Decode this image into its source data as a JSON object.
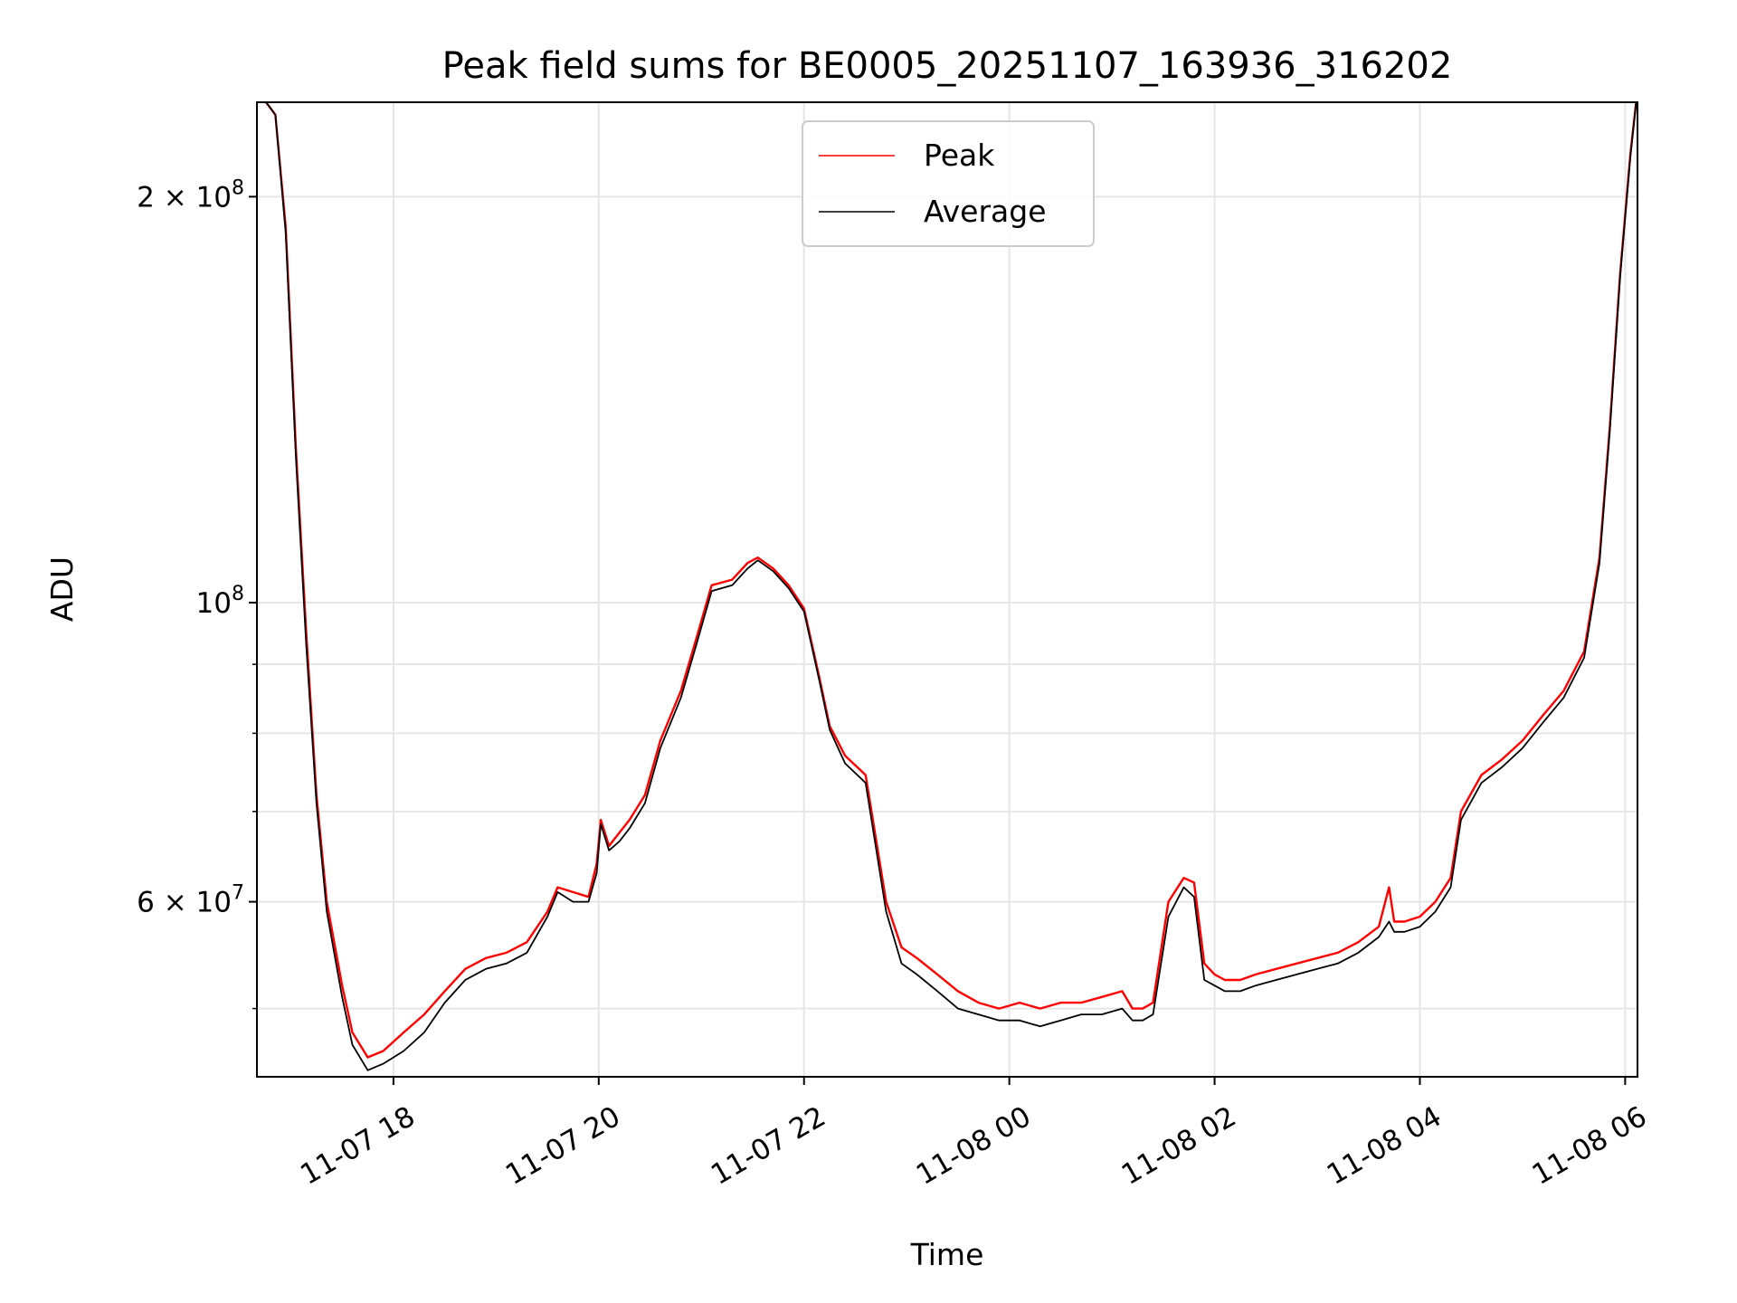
{
  "chart_data": {
    "type": "line",
    "title": "Peak field sums for BE0005_20251107_163936_316202",
    "xlabel": "Time",
    "ylabel": "ADU",
    "yscale": "log",
    "ylim": [
      44500000,
      235000000
    ],
    "xlim_hours": [
      16.67,
      30.12
    ],
    "x_unit": "hours since 2025-11-07 00:00",
    "grid": true,
    "legend_position": "upper-center",
    "x_ticks": [
      {
        "value": 18,
        "label": "11-07 18"
      },
      {
        "value": 20,
        "label": "11-07 20"
      },
      {
        "value": 22,
        "label": "11-07 22"
      },
      {
        "value": 24,
        "label": "11-08 00"
      },
      {
        "value": 26,
        "label": "11-08 02"
      },
      {
        "value": 28,
        "label": "11-08 04"
      },
      {
        "value": 30,
        "label": "11-08 06"
      }
    ],
    "y_ticks": [
      {
        "value": 60000000,
        "label": "6 × 10",
        "exp": "7"
      },
      {
        "value": 100000000,
        "label": "10",
        "exp": "8"
      },
      {
        "value": 200000000,
        "label": "2 × 10",
        "exp": "8"
      }
    ],
    "y_minor_ticks": [
      50000000,
      70000000,
      80000000,
      90000000
    ],
    "series": [
      {
        "name": "Peak",
        "color": "#ff0000",
        "x": [
          16.67,
          16.85,
          16.95,
          17.05,
          17.15,
          17.25,
          17.35,
          17.5,
          17.6,
          17.75,
          17.9,
          18.1,
          18.3,
          18.5,
          18.7,
          18.9,
          19.1,
          19.3,
          19.5,
          19.6,
          19.75,
          19.9,
          19.98,
          20.02,
          20.1,
          20.2,
          20.3,
          20.45,
          20.6,
          20.8,
          20.95,
          21.1,
          21.3,
          21.45,
          21.55,
          21.7,
          21.85,
          22.0,
          22.15,
          22.25,
          22.4,
          22.6,
          22.8,
          22.95,
          23.1,
          23.3,
          23.5,
          23.7,
          23.9,
          24.1,
          24.3,
          24.5,
          24.7,
          24.9,
          25.1,
          25.2,
          25.3,
          25.4,
          25.55,
          25.7,
          25.8,
          25.9,
          26.0,
          26.1,
          26.15,
          26.25,
          26.4,
          26.6,
          26.8,
          27.0,
          27.2,
          27.4,
          27.6,
          27.7,
          27.75,
          27.85,
          28.0,
          28.15,
          28.3,
          28.4,
          28.6,
          28.8,
          29.0,
          29.2,
          29.4,
          29.6,
          29.75,
          29.85,
          29.95,
          30.05,
          30.12
        ],
        "values": [
          240000000,
          230000000,
          190000000,
          130000000,
          95000000,
          72000000,
          60000000,
          52000000,
          48000000,
          46000000,
          46500000,
          48000000,
          49500000,
          51500000,
          53500000,
          54500000,
          55000000,
          56000000,
          59000000,
          61500000,
          61000000,
          60500000,
          64000000,
          69000000,
          66000000,
          67500000,
          69000000,
          72000000,
          79000000,
          86000000,
          94000000,
          103000000,
          104000000,
          107000000,
          108000000,
          106000000,
          103000000,
          99000000,
          88000000,
          81000000,
          77000000,
          74500000,
          60000000,
          55500000,
          54500000,
          53000000,
          51500000,
          50500000,
          50000000,
          50500000,
          50000000,
          50500000,
          50500000,
          51000000,
          51500000,
          50000000,
          50000000,
          50500000,
          60000000,
          62500000,
          62000000,
          54000000,
          53000000,
          52500000,
          52500000,
          52500000,
          53000000,
          53500000,
          54000000,
          54500000,
          55000000,
          56000000,
          57500000,
          61500000,
          58000000,
          58000000,
          58500000,
          60000000,
          62500000,
          70000000,
          74500000,
          76500000,
          79000000,
          82500000,
          86000000,
          92000000,
          108000000,
          135000000,
          175000000,
          215000000,
          240000000
        ]
      },
      {
        "name": "Average",
        "color": "#000000",
        "x": [
          16.67,
          16.85,
          16.95,
          17.05,
          17.15,
          17.25,
          17.35,
          17.5,
          17.6,
          17.75,
          17.9,
          18.1,
          18.3,
          18.5,
          18.7,
          18.9,
          19.1,
          19.3,
          19.5,
          19.6,
          19.75,
          19.9,
          19.98,
          20.02,
          20.1,
          20.2,
          20.3,
          20.45,
          20.6,
          20.8,
          20.95,
          21.1,
          21.3,
          21.45,
          21.55,
          21.7,
          21.85,
          22.0,
          22.15,
          22.25,
          22.4,
          22.6,
          22.8,
          22.95,
          23.1,
          23.3,
          23.5,
          23.7,
          23.9,
          24.1,
          24.3,
          24.5,
          24.7,
          24.9,
          25.1,
          25.2,
          25.3,
          25.4,
          25.55,
          25.7,
          25.8,
          25.9,
          26.0,
          26.1,
          26.15,
          26.25,
          26.4,
          26.6,
          26.8,
          27.0,
          27.2,
          27.4,
          27.6,
          27.7,
          27.75,
          27.85,
          28.0,
          28.15,
          28.3,
          28.4,
          28.6,
          28.8,
          29.0,
          29.2,
          29.4,
          29.6,
          29.75,
          29.85,
          29.95,
          30.05,
          30.12
        ],
        "values": [
          240000000,
          230000000,
          188000000,
          128000000,
          93000000,
          71000000,
          59000000,
          51000000,
          47000000,
          45000000,
          45500000,
          46500000,
          48000000,
          50500000,
          52500000,
          53500000,
          54000000,
          55000000,
          58500000,
          61000000,
          60000000,
          60000000,
          63000000,
          68500000,
          65500000,
          66500000,
          68000000,
          71000000,
          78000000,
          85000000,
          93000000,
          102000000,
          103000000,
          106000000,
          107500000,
          105500000,
          102500000,
          98500000,
          87500000,
          80500000,
          76000000,
          73500000,
          59000000,
          54000000,
          53000000,
          51500000,
          50000000,
          49500000,
          49000000,
          49000000,
          48500000,
          49000000,
          49500000,
          49500000,
          50000000,
          49000000,
          49000000,
          49500000,
          58500000,
          61500000,
          60500000,
          52500000,
          52000000,
          51500000,
          51500000,
          51500000,
          52000000,
          52500000,
          53000000,
          53500000,
          54000000,
          55000000,
          56500000,
          58000000,
          57000000,
          57000000,
          57500000,
          59000000,
          61500000,
          69000000,
          73500000,
          75500000,
          78000000,
          81500000,
          85000000,
          91000000,
          107000000,
          134000000,
          174000000,
          214000000,
          240000000
        ]
      }
    ]
  }
}
